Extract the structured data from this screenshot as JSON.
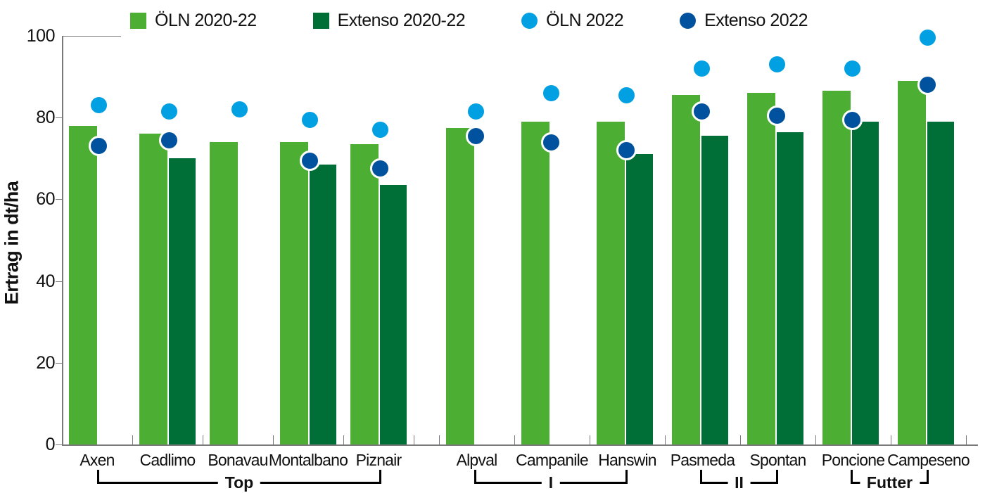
{
  "legend": {
    "items": [
      {
        "label": "ÖLN 2020-22",
        "swatch": "square",
        "color": "#4cae32",
        "icon": "oln-bar-swatch"
      },
      {
        "label": "Extenso 2020-22",
        "swatch": "square",
        "color": "#006f37",
        "icon": "extenso-bar-swatch"
      },
      {
        "label": "ÖLN 2022",
        "swatch": "circle",
        "color": "#00a0e3",
        "icon": "oln-dot-swatch"
      },
      {
        "label": "Extenso 2022",
        "swatch": "circle",
        "color": "#00519e",
        "icon": "extenso-dot-swatch"
      }
    ]
  },
  "chart_data": {
    "type": "bar",
    "title": "",
    "xlabel": "",
    "ylabel": "Ertrag in dt/ha",
    "ylim": [
      0,
      100
    ],
    "yticks": [
      0,
      20,
      40,
      60,
      80,
      100
    ],
    "grid": false,
    "legend_position": "top",
    "categories": [
      "Axen",
      "Cadlimo",
      "Bonavau",
      "Montalbano",
      "Piznair",
      "Alpval",
      "Campanile",
      "Hanswin",
      "Pasmeda",
      "Spontan",
      "Poncione",
      "Campeseno"
    ],
    "series": [
      {
        "name": "ÖLN 2020-22",
        "render": "bar",
        "color": "#4cae32",
        "values": [
          78,
          76,
          74,
          74,
          73.5,
          77.5,
          79,
          79,
          85.5,
          86,
          86.5,
          89
        ]
      },
      {
        "name": "Extenso 2020-22",
        "render": "bar",
        "color": "#006f37",
        "values": [
          null,
          70,
          null,
          68.5,
          63.5,
          null,
          null,
          71,
          75.5,
          76.5,
          79,
          79
        ]
      },
      {
        "name": "ÖLN 2022",
        "render": "point",
        "color": "#00a0e3",
        "values": [
          83,
          81.5,
          82,
          79.5,
          77,
          81.5,
          86,
          85.5,
          92,
          93,
          92,
          99.5
        ]
      },
      {
        "name": "Extenso 2022",
        "render": "point",
        "color": "#00519e",
        "values": [
          73,
          74.5,
          null,
          69.5,
          67.5,
          75.5,
          74,
          72,
          81.5,
          80.5,
          79.5,
          88
        ]
      }
    ],
    "groups": [
      {
        "label": "Top",
        "from": 0,
        "to": 4
      },
      {
        "label": "I",
        "from": 5,
        "to": 7
      },
      {
        "label": "II",
        "from": 8,
        "to": 9
      },
      {
        "label": "Futter",
        "from": 10,
        "to": 11
      }
    ]
  },
  "colors": {
    "oln_bar": "#4cae32",
    "extenso_bar": "#006f37",
    "oln_dot": "#00a0e3",
    "extenso_dot": "#00519e",
    "axis": "#7a7a7a",
    "text": "#111111"
  }
}
